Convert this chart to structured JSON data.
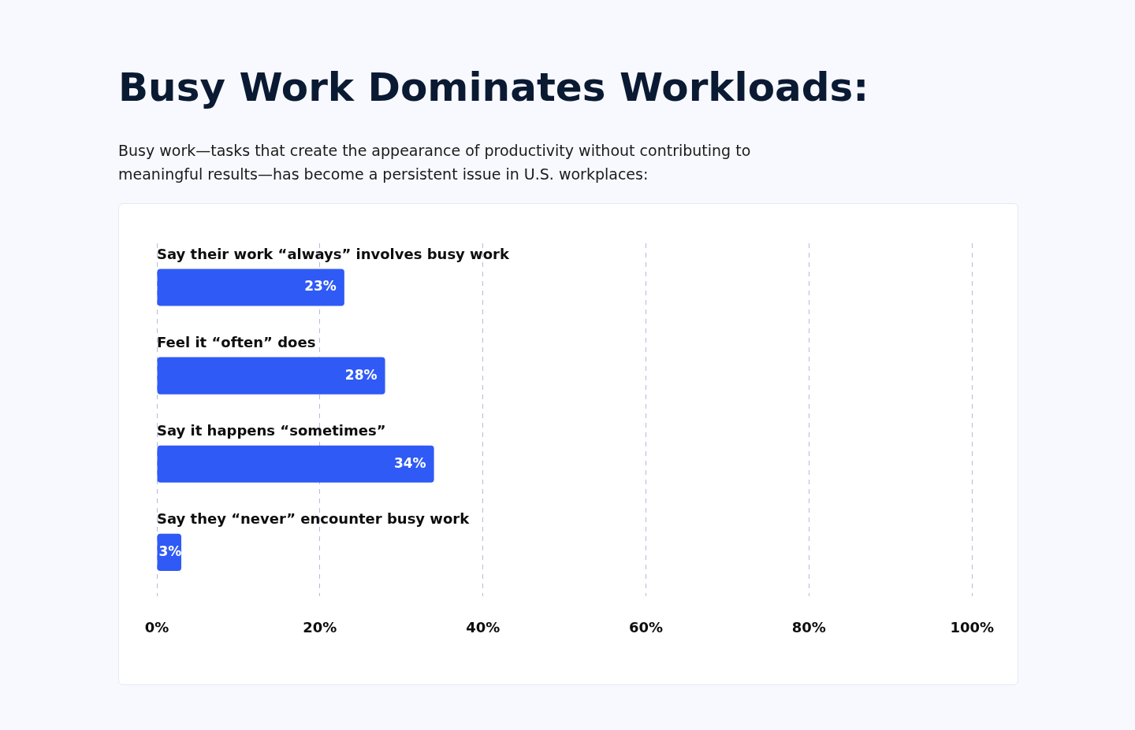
{
  "chart_data": {
    "type": "bar",
    "orientation": "horizontal",
    "title": "Busy Work Dominates Workloads:",
    "subtitle": "Busy work—tasks that create the appearance of productivity without contributing to meaningful results—has become a persistent issue in U.S. workplaces:",
    "categories": [
      "Say their work “always” involves busy work",
      "Feel it “often” does",
      "Say it happens “sometimes”",
      "Say they “never” encounter busy work"
    ],
    "values": [
      23,
      28,
      34,
      3
    ],
    "color": "#2f5af5",
    "value_labels": [
      "23%",
      "28%",
      "34%",
      "3%"
    ],
    "xlim": [
      0,
      100
    ],
    "xticks": [
      {
        "value": 0,
        "label": "0%"
      },
      {
        "value": 20,
        "label": "20%"
      },
      {
        "value": 40,
        "label": "40%"
      },
      {
        "value": 60,
        "label": "60%"
      },
      {
        "value": 80,
        "label": "80%"
      },
      {
        "value": 100,
        "label": "100%"
      }
    ],
    "grid": "x",
    "legend": false,
    "tick_labels": "x"
  }
}
